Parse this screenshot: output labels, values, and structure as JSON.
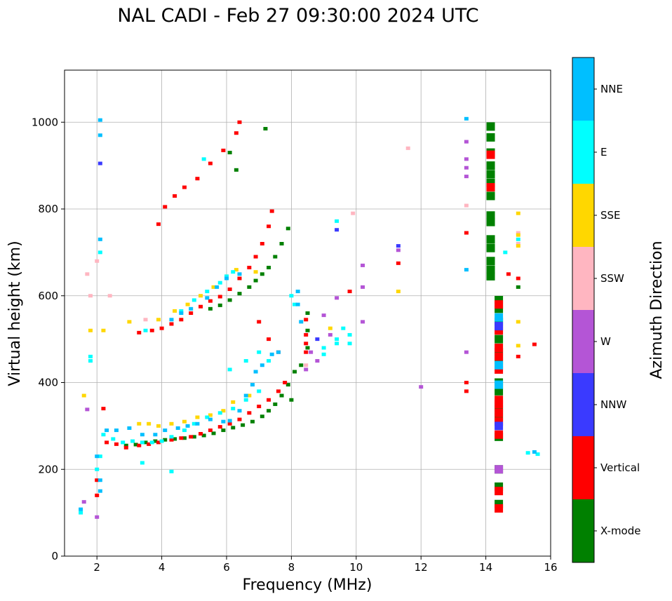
{
  "chart_data": {
    "type": "scatter",
    "title": "NAL CADI - Feb 27 09:30:00 2024 UTC",
    "xlabel": "Frequency (MHz)",
    "ylabel": "Virtual height (km)",
    "xlim": [
      1,
      16
    ],
    "ylim": [
      0,
      1120
    ],
    "xticks": [
      2,
      4,
      6,
      8,
      10,
      12,
      14,
      16
    ],
    "yticks": [
      0,
      200,
      400,
      600,
      800,
      1000
    ],
    "grid": true,
    "colorbar": {
      "label": "Azimuth Direction",
      "categories": [
        {
          "name": "X-mode",
          "color": "#008000"
        },
        {
          "name": "Vertical",
          "color": "#ff0000"
        },
        {
          "name": "NNW",
          "color": "#3a3aff"
        },
        {
          "name": "W",
          "color": "#b455d6"
        },
        {
          "name": "SSW",
          "color": "#ffb6c1"
        },
        {
          "name": "SSE",
          "color": "#ffd700"
        },
        {
          "name": "E",
          "color": "#00ffff"
        },
        {
          "name": "NNE",
          "color": "#00bfff"
        }
      ]
    },
    "series": [
      {
        "name": "X-mode",
        "points": [
          [
            2.9,
            255
          ],
          [
            3.2,
            257
          ],
          [
            3.5,
            262
          ],
          [
            3.8,
            265
          ],
          [
            4.1,
            268
          ],
          [
            4.4,
            270
          ],
          [
            4.7,
            272
          ],
          [
            5.0,
            275
          ],
          [
            5.3,
            278
          ],
          [
            5.6,
            283
          ],
          [
            5.9,
            290
          ],
          [
            6.2,
            296
          ],
          [
            6.5,
            302
          ],
          [
            6.8,
            310
          ],
          [
            7.1,
            322
          ],
          [
            7.3,
            335
          ],
          [
            7.5,
            350
          ],
          [
            7.7,
            370
          ],
          [
            7.9,
            395
          ],
          [
            8.1,
            425
          ],
          [
            8.3,
            440
          ],
          [
            5.5,
            570
          ],
          [
            5.8,
            578
          ],
          [
            6.1,
            590
          ],
          [
            6.4,
            605
          ],
          [
            6.7,
            620
          ],
          [
            6.9,
            635
          ],
          [
            7.1,
            650
          ],
          [
            7.3,
            665
          ],
          [
            7.5,
            690
          ],
          [
            7.7,
            720
          ],
          [
            7.9,
            755
          ],
          [
            6.1,
            930
          ],
          [
            6.3,
            890
          ],
          [
            7.2,
            985
          ],
          [
            14.15,
            990
          ],
          [
            14.15,
            965
          ],
          [
            14.15,
            930
          ],
          [
            14.15,
            900
          ],
          [
            14.15,
            880
          ],
          [
            14.15,
            860
          ],
          [
            14.15,
            830
          ],
          [
            14.15,
            785
          ],
          [
            14.15,
            770
          ],
          [
            14.15,
            730
          ],
          [
            14.15,
            710
          ],
          [
            14.15,
            680
          ],
          [
            14.15,
            660
          ],
          [
            14.15,
            645
          ],
          [
            14.4,
            590
          ],
          [
            14.4,
            570
          ],
          [
            14.4,
            540
          ],
          [
            14.4,
            500
          ],
          [
            14.4,
            470
          ],
          [
            14.4,
            450
          ],
          [
            14.4,
            400
          ],
          [
            14.4,
            380
          ],
          [
            14.4,
            340
          ],
          [
            14.4,
            320
          ],
          [
            14.4,
            275
          ],
          [
            14.4,
            200
          ],
          [
            14.4,
            160
          ],
          [
            14.4,
            120
          ],
          [
            8.5,
            560
          ],
          [
            8.5,
            520
          ],
          [
            8.5,
            480
          ],
          [
            15.0,
            620
          ],
          [
            8.0,
            360
          ]
        ]
      },
      {
        "name": "Vertical",
        "points": [
          [
            2.3,
            262
          ],
          [
            2.6,
            258
          ],
          [
            2.9,
            250
          ],
          [
            3.3,
            255
          ],
          [
            3.6,
            258
          ],
          [
            3.9,
            262
          ],
          [
            4.3,
            268
          ],
          [
            4.6,
            272
          ],
          [
            4.9,
            275
          ],
          [
            5.2,
            282
          ],
          [
            5.5,
            290
          ],
          [
            5.8,
            298
          ],
          [
            6.1,
            305
          ],
          [
            6.4,
            315
          ],
          [
            6.7,
            330
          ],
          [
            7.0,
            345
          ],
          [
            7.3,
            360
          ],
          [
            7.6,
            380
          ],
          [
            7.8,
            400
          ],
          [
            3.3,
            515
          ],
          [
            3.7,
            520
          ],
          [
            4.0,
            525
          ],
          [
            4.3,
            535
          ],
          [
            4.6,
            545
          ],
          [
            4.9,
            560
          ],
          [
            5.2,
            575
          ],
          [
            5.5,
            588
          ],
          [
            5.8,
            598
          ],
          [
            6.1,
            615
          ],
          [
            6.4,
            640
          ],
          [
            6.7,
            665
          ],
          [
            6.9,
            690
          ],
          [
            7.1,
            720
          ],
          [
            7.3,
            760
          ],
          [
            7.4,
            795
          ],
          [
            3.9,
            765
          ],
          [
            4.1,
            805
          ],
          [
            4.4,
            830
          ],
          [
            4.7,
            850
          ],
          [
            5.1,
            870
          ],
          [
            5.5,
            905
          ],
          [
            5.9,
            935
          ],
          [
            6.3,
            975
          ],
          [
            6.4,
            1000
          ],
          [
            2.0,
            140
          ],
          [
            2.0,
            175
          ],
          [
            2.2,
            340
          ],
          [
            7.0,
            540
          ],
          [
            7.3,
            500
          ],
          [
            7.6,
            470
          ],
          [
            8.45,
            510
          ],
          [
            8.45,
            490
          ],
          [
            8.45,
            470
          ],
          [
            8.45,
            545
          ],
          [
            14.15,
            850
          ],
          [
            14.15,
            925
          ],
          [
            13.4,
            745
          ],
          [
            13.4,
            400
          ],
          [
            13.4,
            380
          ],
          [
            14.4,
            580
          ],
          [
            14.4,
            520
          ],
          [
            14.4,
            480
          ],
          [
            14.4,
            460
          ],
          [
            14.4,
            430
          ],
          [
            14.4,
            360
          ],
          [
            14.4,
            350
          ],
          [
            14.4,
            330
          ],
          [
            14.4,
            310
          ],
          [
            14.4,
            280
          ],
          [
            14.4,
            150
          ],
          [
            14.4,
            110
          ],
          [
            14.7,
            650
          ],
          [
            15.0,
            640
          ],
          [
            15.0,
            460
          ],
          [
            15.5,
            488
          ],
          [
            11.3,
            675
          ],
          [
            9.8,
            610
          ]
        ]
      },
      {
        "name": "NNW",
        "points": [
          [
            2.1,
            905
          ],
          [
            9.4,
            752
          ],
          [
            11.3,
            715
          ],
          [
            8.8,
            500
          ],
          [
            14.4,
            530
          ],
          [
            14.4,
            300
          ]
        ]
      },
      {
        "name": "W",
        "points": [
          [
            13.4,
            955
          ],
          [
            13.4,
            915
          ],
          [
            13.4,
            895
          ],
          [
            13.4,
            875
          ],
          [
            11.3,
            705
          ],
          [
            10.2,
            670
          ],
          [
            10.2,
            620
          ],
          [
            10.2,
            540
          ],
          [
            12.0,
            390
          ],
          [
            8.6,
            470
          ],
          [
            8.8,
            450
          ],
          [
            9.0,
            555
          ],
          [
            9.2,
            510
          ],
          [
            9.4,
            595
          ],
          [
            8.45,
            430
          ],
          [
            1.7,
            338
          ],
          [
            1.6,
            125
          ],
          [
            2.0,
            90
          ],
          [
            13.4,
            470
          ],
          [
            14.4,
            200
          ]
        ]
      },
      {
        "name": "SSW",
        "points": [
          [
            11.6,
            940
          ],
          [
            9.9,
            790
          ],
          [
            1.7,
            650
          ],
          [
            1.8,
            600
          ],
          [
            2.0,
            680
          ],
          [
            8.45,
            440
          ],
          [
            3.5,
            545
          ],
          [
            4.6,
            560
          ],
          [
            13.4,
            808
          ],
          [
            15.0,
            745
          ],
          [
            15.0,
            720
          ],
          [
            2.4,
            600
          ]
        ]
      },
      {
        "name": "SSE",
        "points": [
          [
            3.3,
            305
          ],
          [
            3.6,
            305
          ],
          [
            3.9,
            300
          ],
          [
            4.3,
            305
          ],
          [
            4.7,
            310
          ],
          [
            5.1,
            320
          ],
          [
            5.5,
            325
          ],
          [
            5.9,
            335
          ],
          [
            6.2,
            355
          ],
          [
            6.7,
            370
          ],
          [
            3.9,
            545
          ],
          [
            4.4,
            565
          ],
          [
            4.8,
            580
          ],
          [
            5.2,
            600
          ],
          [
            5.6,
            620
          ],
          [
            6.0,
            645
          ],
          [
            6.3,
            660
          ],
          [
            3.0,
            540
          ],
          [
            1.8,
            520
          ],
          [
            1.6,
            370
          ],
          [
            9.2,
            525
          ],
          [
            11.3,
            610
          ],
          [
            15.0,
            790
          ],
          [
            15.0,
            740
          ],
          [
            15.0,
            715
          ],
          [
            15.0,
            540
          ],
          [
            15.0,
            485
          ],
          [
            2.2,
            520
          ],
          [
            6.9,
            655
          ]
        ]
      },
      {
        "name": "E",
        "points": [
          [
            2.2,
            280
          ],
          [
            2.5,
            270
          ],
          [
            2.8,
            262
          ],
          [
            3.1,
            265
          ],
          [
            3.4,
            262
          ],
          [
            3.7,
            262
          ],
          [
            4.0,
            265
          ],
          [
            4.3,
            275
          ],
          [
            4.7,
            290
          ],
          [
            5.0,
            305
          ],
          [
            5.4,
            320
          ],
          [
            5.8,
            330
          ],
          [
            6.2,
            340
          ],
          [
            6.6,
            360
          ],
          [
            7.0,
            380
          ],
          [
            6.1,
            430
          ],
          [
            6.6,
            450
          ],
          [
            7.0,
            470
          ],
          [
            7.3,
            450
          ],
          [
            4.6,
            565
          ],
          [
            5.0,
            590
          ],
          [
            5.4,
            610
          ],
          [
            5.8,
            630
          ],
          [
            6.0,
            645
          ],
          [
            6.2,
            655
          ],
          [
            3.5,
            520
          ],
          [
            3.4,
            215
          ],
          [
            4.3,
            195
          ],
          [
            1.5,
            100
          ],
          [
            1.8,
            450
          ],
          [
            1.8,
            460
          ],
          [
            9.0,
            465
          ],
          [
            9.0,
            480
          ],
          [
            9.4,
            490
          ],
          [
            9.4,
            500
          ],
          [
            9.8,
            490
          ],
          [
            9.8,
            510
          ],
          [
            9.6,
            525
          ],
          [
            8.1,
            580
          ],
          [
            8.0,
            600
          ],
          [
            9.4,
            772
          ],
          [
            14.6,
            700
          ],
          [
            15.0,
            730
          ],
          [
            15.6,
            235
          ],
          [
            15.3,
            238
          ],
          [
            2.0,
            200
          ],
          [
            2.1,
            230
          ],
          [
            2.1,
            700
          ],
          [
            5.3,
            915
          ]
        ]
      },
      {
        "name": "NNE",
        "points": [
          [
            2.3,
            290
          ],
          [
            2.6,
            290
          ],
          [
            3.0,
            295
          ],
          [
            3.4,
            280
          ],
          [
            3.8,
            280
          ],
          [
            4.1,
            290
          ],
          [
            4.5,
            295
          ],
          [
            4.8,
            300
          ],
          [
            5.1,
            305
          ],
          [
            5.5,
            315
          ],
          [
            5.9,
            310
          ],
          [
            6.1,
            312
          ],
          [
            6.4,
            335
          ],
          [
            6.6,
            370
          ],
          [
            6.8,
            395
          ],
          [
            6.9,
            425
          ],
          [
            7.1,
            440
          ],
          [
            7.4,
            465
          ],
          [
            7.6,
            470
          ],
          [
            4.3,
            545
          ],
          [
            4.6,
            560
          ],
          [
            4.9,
            570
          ],
          [
            5.4,
            595
          ],
          [
            5.7,
            620
          ],
          [
            6.0,
            640
          ],
          [
            6.4,
            650
          ],
          [
            13.4,
            1008
          ],
          [
            13.4,
            660
          ],
          [
            2.1,
            1005
          ],
          [
            2.1,
            970
          ],
          [
            2.1,
            730
          ],
          [
            2.0,
            230
          ],
          [
            2.1,
            175
          ],
          [
            2.1,
            150
          ],
          [
            1.5,
            108
          ],
          [
            8.2,
            610
          ],
          [
            8.2,
            580
          ],
          [
            8.3,
            540
          ],
          [
            15.5,
            240
          ],
          [
            14.4,
            550
          ],
          [
            14.4,
            440
          ],
          [
            14.4,
            395
          ]
        ]
      }
    ]
  }
}
